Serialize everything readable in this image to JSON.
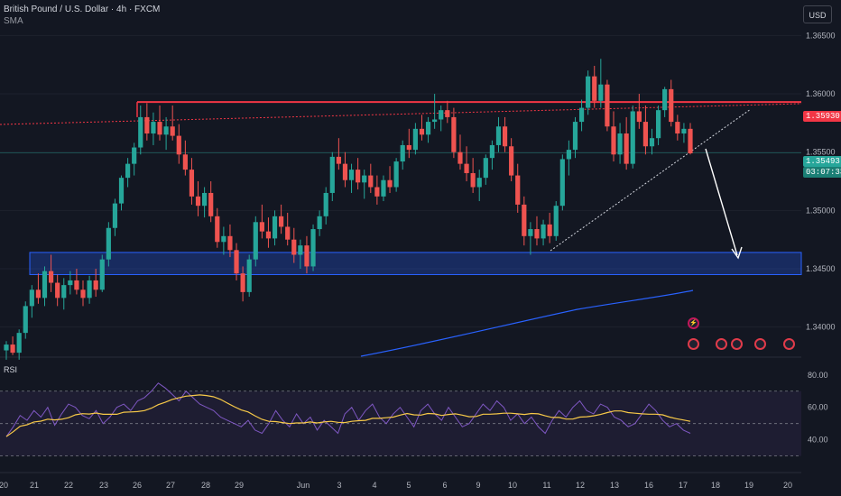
{
  "header": {
    "title": "British Pound / U.S. Dollar · 4h · FXCM",
    "indicator": "SMA"
  },
  "currency_button": "USD",
  "rsi": {
    "label": "RSI",
    "levels": [
      "80.00",
      "60.00",
      "40.00"
    ]
  },
  "price_axis": [
    "1.36500",
    "1.36000",
    "1.35500",
    "1.35000",
    "1.34500",
    "1.34000"
  ],
  "resistance_price": "1.35930",
  "last_price": "1.35493",
  "countdown": "03:07:33",
  "date_axis": [
    "20",
    "21",
    "22",
    "23",
    "26",
    "27",
    "28",
    "29",
    "Jun",
    "3",
    "4",
    "5",
    "6",
    "9",
    "10",
    "11",
    "12",
    "13",
    "16",
    "17",
    "18",
    "19",
    "20"
  ],
  "colors": {
    "up": "#26a69a",
    "down": "#ef5350",
    "resistance": "#f23645",
    "zone": "#2962ff",
    "sma": "#2962ff",
    "rsi": "#7e57c2",
    "rsi_ma": "#f7c948",
    "background": "#131722"
  },
  "events": [
    "flash-icon",
    "us-flag-icon",
    "uk-flag-icon",
    "us-flag-icon",
    "uk-flag-icon",
    "uk-flag-icon"
  ],
  "chart_data": {
    "type": "candlestick",
    "symbol": "GBPUSD",
    "timeframe": "4h",
    "ylim": [
      1.3375,
      1.3665
    ],
    "candles": [
      [
        1.338,
        1.3388,
        1.3372,
        1.3385
      ],
      [
        1.3385,
        1.3392,
        1.3376,
        1.3378
      ],
      [
        1.3378,
        1.3398,
        1.3372,
        1.3395
      ],
      [
        1.3395,
        1.3422,
        1.339,
        1.3418
      ],
      [
        1.3418,
        1.3436,
        1.3408,
        1.3432
      ],
      [
        1.3432,
        1.3446,
        1.342,
        1.3425
      ],
      [
        1.3425,
        1.3452,
        1.3418,
        1.3448
      ],
      [
        1.3448,
        1.3462,
        1.343,
        1.3438
      ],
      [
        1.3438,
        1.3445,
        1.3418,
        1.3425
      ],
      [
        1.3425,
        1.3442,
        1.3415,
        1.3436
      ],
      [
        1.3436,
        1.3448,
        1.3428,
        1.344
      ],
      [
        1.344,
        1.345,
        1.3428,
        1.3432
      ],
      [
        1.3432,
        1.344,
        1.3418,
        1.3425
      ],
      [
        1.3425,
        1.3444,
        1.342,
        1.344
      ],
      [
        1.344,
        1.345,
        1.3426,
        1.3432
      ],
      [
        1.3432,
        1.3462,
        1.343,
        1.3458
      ],
      [
        1.3458,
        1.349,
        1.3452,
        1.3485
      ],
      [
        1.3485,
        1.351,
        1.3478,
        1.3506
      ],
      [
        1.3506,
        1.353,
        1.35,
        1.3528
      ],
      [
        1.3528,
        1.3545,
        1.352,
        1.354
      ],
      [
        1.354,
        1.3558,
        1.353,
        1.3554
      ],
      [
        1.3554,
        1.359,
        1.3548,
        1.358
      ],
      [
        1.358,
        1.3592,
        1.356,
        1.3566
      ],
      [
        1.3566,
        1.3584,
        1.3556,
        1.3576
      ],
      [
        1.3576,
        1.359,
        1.356,
        1.3565
      ],
      [
        1.3565,
        1.358,
        1.3552,
        1.3572
      ],
      [
        1.3572,
        1.359,
        1.356,
        1.3564
      ],
      [
        1.3564,
        1.3574,
        1.354,
        1.3548
      ],
      [
        1.3548,
        1.356,
        1.353,
        1.3535
      ],
      [
        1.3535,
        1.3545,
        1.3505,
        1.3512
      ],
      [
        1.3512,
        1.3525,
        1.3495,
        1.3504
      ],
      [
        1.3504,
        1.352,
        1.3494,
        1.3515
      ],
      [
        1.3515,
        1.3525,
        1.349,
        1.3495
      ],
      [
        1.3495,
        1.3502,
        1.3468,
        1.3473
      ],
      [
        1.3473,
        1.3486,
        1.3462,
        1.3478
      ],
      [
        1.3478,
        1.3488,
        1.346,
        1.3466
      ],
      [
        1.3466,
        1.3472,
        1.344,
        1.3446
      ],
      [
        1.3446,
        1.3452,
        1.3422,
        1.343
      ],
      [
        1.343,
        1.3462,
        1.3426,
        1.3458
      ],
      [
        1.3458,
        1.3495,
        1.3452,
        1.349
      ],
      [
        1.349,
        1.3505,
        1.3476,
        1.3482
      ],
      [
        1.3482,
        1.3494,
        1.3468,
        1.3476
      ],
      [
        1.3476,
        1.35,
        1.347,
        1.3495
      ],
      [
        1.3495,
        1.3505,
        1.348,
        1.3486
      ],
      [
        1.3486,
        1.3498,
        1.347,
        1.3475
      ],
      [
        1.3475,
        1.3485,
        1.3455,
        1.3462
      ],
      [
        1.3462,
        1.3475,
        1.345,
        1.347
      ],
      [
        1.347,
        1.3478,
        1.3446,
        1.3452
      ],
      [
        1.3452,
        1.3488,
        1.3448,
        1.3484
      ],
      [
        1.3484,
        1.35,
        1.3478,
        1.3495
      ],
      [
        1.3495,
        1.352,
        1.3488,
        1.3515
      ],
      [
        1.3515,
        1.355,
        1.3508,
        1.3546
      ],
      [
        1.3546,
        1.3562,
        1.3535,
        1.354
      ],
      [
        1.354,
        1.355,
        1.352,
        1.3526
      ],
      [
        1.3526,
        1.354,
        1.3515,
        1.3535
      ],
      [
        1.3535,
        1.3545,
        1.3518,
        1.3524
      ],
      [
        1.3524,
        1.3535,
        1.351,
        1.353
      ],
      [
        1.353,
        1.354,
        1.3515,
        1.352
      ],
      [
        1.352,
        1.353,
        1.3505,
        1.3512
      ],
      [
        1.3512,
        1.353,
        1.3508,
        1.3526
      ],
      [
        1.3526,
        1.3538,
        1.3515,
        1.352
      ],
      [
        1.352,
        1.3545,
        1.3516,
        1.3542
      ],
      [
        1.3542,
        1.356,
        1.3535,
        1.3556
      ],
      [
        1.3556,
        1.357,
        1.3545,
        1.3552
      ],
      [
        1.3552,
        1.3575,
        1.3548,
        1.357
      ],
      [
        1.357,
        1.3582,
        1.356,
        1.3565
      ],
      [
        1.3565,
        1.358,
        1.3558,
        1.3576
      ],
      [
        1.3576,
        1.36,
        1.357,
        1.3578
      ],
      [
        1.3578,
        1.359,
        1.3568,
        1.3586
      ],
      [
        1.3586,
        1.3594,
        1.3575,
        1.358
      ],
      [
        1.358,
        1.3588,
        1.3545,
        1.355
      ],
      [
        1.355,
        1.3565,
        1.3535,
        1.354
      ],
      [
        1.354,
        1.3555,
        1.3525,
        1.3532
      ],
      [
        1.3532,
        1.3545,
        1.3515,
        1.352
      ],
      [
        1.352,
        1.3535,
        1.3508,
        1.3528
      ],
      [
        1.3528,
        1.3548,
        1.3522,
        1.3545
      ],
      [
        1.3545,
        1.356,
        1.3535,
        1.3556
      ],
      [
        1.3556,
        1.358,
        1.355,
        1.3572
      ],
      [
        1.3572,
        1.358,
        1.355,
        1.3555
      ],
      [
        1.3555,
        1.3562,
        1.3525,
        1.353
      ],
      [
        1.353,
        1.354,
        1.3498,
        1.3505
      ],
      [
        1.3505,
        1.3512,
        1.347,
        1.3478
      ],
      [
        1.3478,
        1.349,
        1.3462,
        1.3484
      ],
      [
        1.3484,
        1.3495,
        1.347,
        1.3476
      ],
      [
        1.3476,
        1.3492,
        1.347,
        1.3488
      ],
      [
        1.3488,
        1.3498,
        1.3472,
        1.3478
      ],
      [
        1.3478,
        1.3508,
        1.3474,
        1.3504
      ],
      [
        1.3504,
        1.3548,
        1.35,
        1.3544
      ],
      [
        1.3544,
        1.356,
        1.353,
        1.3552
      ],
      [
        1.3552,
        1.358,
        1.3545,
        1.3576
      ],
      [
        1.3576,
        1.3595,
        1.3568,
        1.3588
      ],
      [
        1.3588,
        1.362,
        1.3582,
        1.3615
      ],
      [
        1.3615,
        1.3624,
        1.3588,
        1.3594
      ],
      [
        1.3594,
        1.363,
        1.3588,
        1.3608
      ],
      [
        1.3608,
        1.3612,
        1.3568,
        1.3572
      ],
      [
        1.3572,
        1.3585,
        1.3542,
        1.3548
      ],
      [
        1.3548,
        1.3575,
        1.354,
        1.3566
      ],
      [
        1.3566,
        1.358,
        1.3535,
        1.354
      ],
      [
        1.354,
        1.359,
        1.3536,
        1.3585
      ],
      [
        1.3585,
        1.36,
        1.357,
        1.3576
      ],
      [
        1.3576,
        1.359,
        1.3548,
        1.3555
      ],
      [
        1.3555,
        1.357,
        1.3548,
        1.3562
      ],
      [
        1.3562,
        1.359,
        1.3556,
        1.3586
      ],
      [
        1.3586,
        1.3606,
        1.358,
        1.3604
      ],
      [
        1.3604,
        1.3612,
        1.3572,
        1.3576
      ],
      [
        1.3576,
        1.3582,
        1.356,
        1.3566
      ],
      [
        1.3566,
        1.3575,
        1.3558,
        1.357
      ],
      [
        1.357,
        1.3575,
        1.3548,
        1.3549
      ]
    ],
    "rsi_values": [
      42,
      48,
      55,
      52,
      58,
      54,
      60,
      49,
      56,
      62,
      60,
      55,
      53,
      58,
      50,
      54,
      60,
      62,
      58,
      64,
      66,
      70,
      75,
      72,
      68,
      64,
      70,
      66,
      62,
      60,
      58,
      54,
      52,
      50,
      48,
      52,
      46,
      44,
      50,
      58,
      52,
      48,
      56,
      50,
      54,
      46,
      52,
      48,
      44,
      56,
      60,
      52,
      58,
      62,
      54,
      50,
      56,
      60,
      54,
      48,
      58,
      62,
      56,
      52,
      60,
      54,
      48,
      50,
      56,
      62,
      58,
      64,
      60,
      52,
      56,
      50,
      54,
      48,
      44,
      52,
      58,
      54,
      60,
      64,
      58,
      56,
      62,
      60,
      54,
      52,
      48,
      50,
      56,
      62,
      58,
      52,
      48,
      50,
      46,
      44
    ],
    "rsi_ylim": [
      22,
      86
    ]
  }
}
